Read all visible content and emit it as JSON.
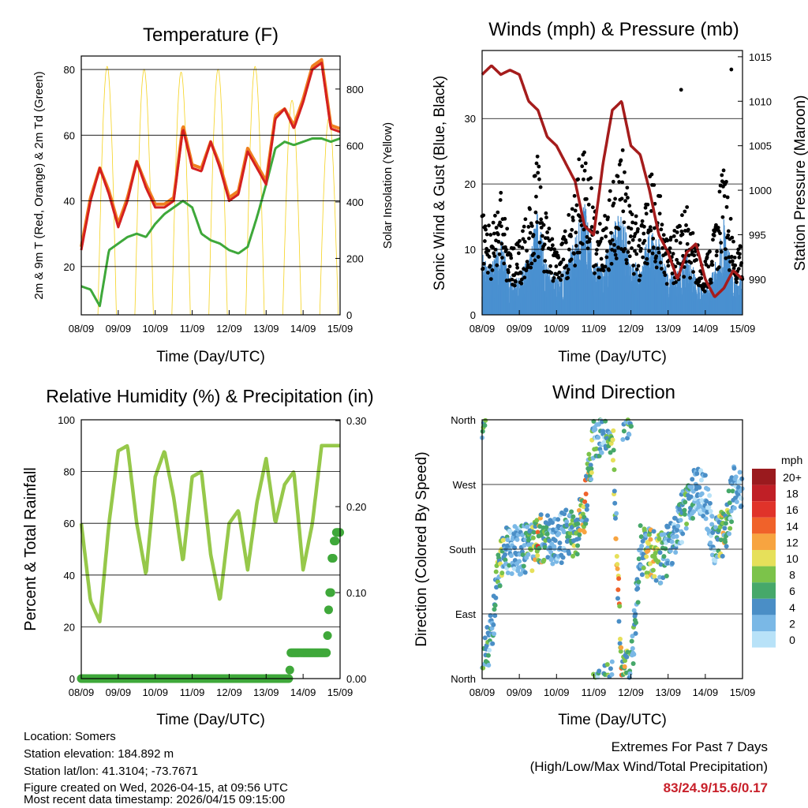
{
  "chart_data": [
    {
      "type": "line",
      "title": "Temperature (F)",
      "xlabel": "Time (Day/UTC)",
      "ylabel": "2m & 9m T (Red, Orange) & 2m Td (Green)",
      "ylabel_right": "Solar Insolation (Yellow)",
      "x_ticks": [
        "08/09",
        "09/09",
        "10/09",
        "11/09",
        "12/09",
        "13/09",
        "14/09",
        "15/09"
      ],
      "y_ticks": [
        "20",
        "40",
        "60",
        "80"
      ],
      "y_ticks_right": [
        "0",
        "200",
        "400",
        "600",
        "800"
      ],
      "ylim": [
        5.3,
        84.1
      ],
      "ylim_right": [
        0,
        917
      ],
      "x_step_days": 0.25,
      "series": [
        {
          "name": "2m T",
          "color": "#d42020",
          "values": [
            25,
            40,
            50,
            42,
            32,
            40,
            52,
            44,
            38,
            38,
            40,
            62,
            50,
            49,
            58,
            50,
            40,
            42,
            55,
            50,
            45,
            65,
            68,
            62,
            70,
            80,
            82,
            62,
            61
          ]
        },
        {
          "name": "9m T",
          "color": "#f07f20",
          "values": [
            26,
            41,
            50,
            43,
            33,
            41,
            52,
            45,
            39,
            39,
            41,
            63,
            51,
            50,
            58,
            51,
            41,
            43,
            56,
            51,
            46,
            66,
            68,
            63,
            71,
            81,
            83,
            63,
            62
          ]
        },
        {
          "name": "2m Td",
          "color": "#3ea83a",
          "values": [
            14,
            13,
            8,
            25,
            27,
            29,
            30,
            29,
            33,
            36,
            38,
            40,
            38,
            30,
            28,
            27,
            25,
            24,
            26,
            35,
            45,
            56,
            58,
            57,
            58,
            59,
            59,
            58,
            59
          ]
        }
      ],
      "solar_daily_peak": [
        880,
        870,
        860,
        870,
        880,
        760,
        700
      ]
    },
    {
      "type": "line",
      "title": "Winds (mph) & Pressure (mb)",
      "xlabel": "Time (Day/UTC)",
      "ylabel": "Sonic Wind & Gust (Blue, Black)",
      "ylabel_right": "Station Pressure (Maroon)",
      "x_ticks": [
        "08/09",
        "09/09",
        "10/09",
        "11/09",
        "12/09",
        "13/09",
        "14/09",
        "15/09"
      ],
      "y_ticks": [
        "0",
        "10",
        "20",
        "30"
      ],
      "y_ticks_right": [
        "990",
        "995",
        "1000",
        "1005",
        "1010",
        "1015"
      ],
      "ylim": [
        0,
        40.4
      ],
      "ylim_right": [
        986.0,
        1015.7
      ],
      "x_step_days": 0.25,
      "series": [
        {
          "name": "Sonic Wind",
          "color": "#4a90d0",
          "values": [
            7,
            5,
            8,
            4,
            4,
            6,
            11,
            5,
            4,
            5,
            8,
            12,
            6,
            5,
            9,
            11,
            6,
            5,
            10,
            8,
            4,
            5,
            7,
            4,
            3,
            5,
            10,
            4,
            4
          ]
        },
        {
          "name": "Gust",
          "color": "#000000",
          "values": [
            12,
            10,
            14,
            8,
            8,
            12,
            18,
            10,
            8,
            10,
            14,
            22,
            12,
            10,
            15,
            20,
            12,
            10,
            16,
            14,
            8,
            10,
            12,
            8,
            6,
            10,
            18,
            8,
            8
          ]
        },
        {
          "name": "Station Pressure",
          "color": "#a51c1c",
          "values": [
            1013,
            1014,
            1013,
            1013.5,
            1013,
            1010,
            1009,
            1006,
            1005,
            1003,
            1001,
            996,
            995,
            1003,
            1009,
            1010,
            1005,
            1004,
            1000,
            995,
            993,
            990,
            993,
            994,
            990,
            988,
            989,
            991,
            990
          ]
        }
      ]
    },
    {
      "type": "line",
      "title": "Relative Humidity (%) & Precipitation (in)",
      "xlabel": "Time (Day/UTC)",
      "ylabel": "Percent & Total Rainfall",
      "x_ticks": [
        "08/09",
        "09/09",
        "10/09",
        "11/09",
        "12/09",
        "13/09",
        "14/09",
        "15/09"
      ],
      "y_ticks": [
        "0",
        "20",
        "40",
        "60",
        "80",
        "100"
      ],
      "y_ticks_right": [
        "0.00",
        "0.10",
        "0.20",
        "0.30"
      ],
      "ylim": [
        0,
        100
      ],
      "ylim_right": [
        0,
        0.301
      ],
      "x_step_days": 0.25,
      "series": [
        {
          "name": "Relative Humidity",
          "color": "#96c84a",
          "values": [
            60,
            30,
            22,
            60,
            88,
            90,
            60,
            40,
            78,
            88,
            70,
            45,
            78,
            80,
            48,
            30,
            60,
            65,
            42,
            68,
            85,
            60,
            75,
            80,
            42,
            60,
            90,
            90,
            90
          ]
        },
        {
          "name": "Total Precipitation",
          "color": "#3fa83a",
          "points": [
            [
              0,
              0
            ],
            [
              5.6,
              0
            ],
            [
              5.62,
              0.01
            ],
            [
              5.66,
              0.03
            ],
            [
              6.6,
              0.03
            ],
            [
              6.64,
              0.05
            ],
            [
              6.68,
              0.08
            ],
            [
              6.72,
              0.1
            ],
            [
              6.76,
              0.14
            ],
            [
              6.82,
              0.16
            ],
            [
              6.9,
              0.17
            ],
            [
              7,
              0.17
            ]
          ]
        }
      ]
    },
    {
      "type": "scatter",
      "title": "Wind Direction",
      "xlabel": "Time (Day/UTC)",
      "ylabel": "Direction (Colored By Speed)",
      "x_ticks": [
        "08/09",
        "09/09",
        "10/09",
        "11/09",
        "12/09",
        "13/09",
        "14/09",
        "15/09"
      ],
      "y_ticks": [
        "North",
        "East",
        "South",
        "West",
        "North"
      ],
      "ylim": [
        0,
        360
      ],
      "x_step_days": 0.25,
      "direction_deg": [
        10,
        60,
        170,
        180,
        180,
        180,
        190,
        200,
        190,
        200,
        200,
        230,
        340,
        345,
        350,
        0,
        10,
        180,
        175,
        165,
        180,
        210,
        240,
        260,
        250,
        190,
        200,
        260,
        270
      ],
      "speed_mph": [
        7,
        5,
        8,
        4,
        4,
        6,
        11,
        5,
        4,
        5,
        8,
        12,
        6,
        5,
        9,
        11,
        6,
        5,
        10,
        8,
        4,
        5,
        7,
        4,
        3,
        5,
        10,
        4,
        4
      ],
      "colorbar": {
        "title": "mph",
        "labels": [
          "20+",
          "18",
          "16",
          "14",
          "12",
          "10",
          "8",
          "6",
          "4",
          "2",
          "0"
        ],
        "colors": [
          "#9a1a1e",
          "#c01f26",
          "#e0332a",
          "#f0622a",
          "#f7a440",
          "#e6e05a",
          "#7cc34a",
          "#46a86a",
          "#4a8ec6",
          "#7ab8e6",
          "#b8e2f8"
        ]
      }
    }
  ],
  "footer": {
    "location": "Location: Somers",
    "elevation": "Station elevation: 184.892 m",
    "latlon": "Station lat/lon: 41.3104; -73.7671",
    "created": "Figure created on Wed, 2026-04-15, at 09:56 UTC",
    "recent": "Most recent data timestamp: 2026/04/15 09:15:00",
    "extremes_title": "Extremes For Past 7 Days",
    "extremes_sub": "(High/Low/Max Wind/Total Precipitation)",
    "extremes_values": "83/24.9/15.6/0.17",
    "extremes_color": "#c8202a"
  }
}
